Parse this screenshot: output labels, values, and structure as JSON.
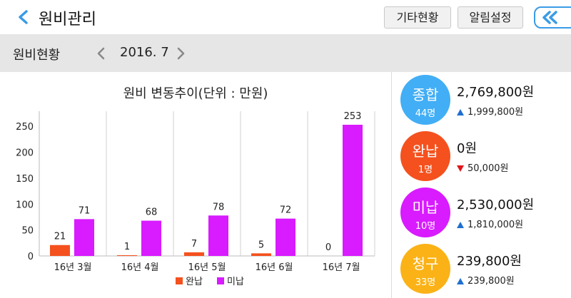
{
  "header": {
    "title": "원비관리",
    "other_status_label": "기타현황",
    "alarm_settings_label": "알림설정"
  },
  "subbar": {
    "label": "원비현황",
    "period": "2016. 7"
  },
  "chart_data": {
    "type": "bar",
    "title": "원비 변동추이(단위 : 만원)",
    "categories": [
      "16년 3월",
      "16년 4월",
      "16년 5월",
      "16년 6월",
      "16년 7월"
    ],
    "series": [
      {
        "name": "완납",
        "color": "#f4511e",
        "values": [
          21,
          1,
          7,
          5,
          0
        ]
      },
      {
        "name": "미납",
        "color": "#d81bff",
        "values": [
          71,
          68,
          78,
          72,
          253
        ]
      }
    ],
    "yticks": [
      0,
      50,
      100,
      150,
      200,
      250
    ],
    "ylim": [
      0,
      260
    ],
    "legend": "bottom"
  },
  "summary": [
    {
      "label": "종합",
      "count": "44명",
      "color": "#42aef5",
      "amount": "2,769,800원",
      "trend": "up",
      "delta": "1,999,800원"
    },
    {
      "label": "완납",
      "count": "1명",
      "color": "#f4511e",
      "amount": "0원",
      "trend": "down",
      "delta": "50,000원"
    },
    {
      "label": "미납",
      "count": "10명",
      "color": "#d81bff",
      "amount": "2,530,000원",
      "trend": "up",
      "delta": "1,810,000원"
    },
    {
      "label": "청구",
      "count": "33명",
      "color": "#fbb216",
      "amount": "239,800원",
      "trend": "up",
      "delta": "239,800원"
    }
  ]
}
